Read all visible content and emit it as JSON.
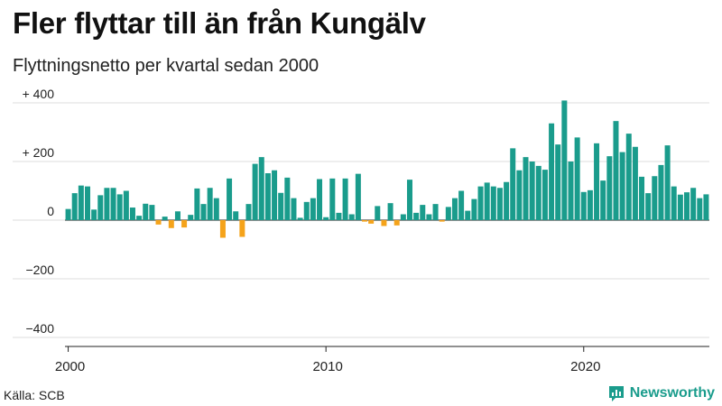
{
  "title": "Fler flyttar till än från Kungälv",
  "subtitle": "Flyttningsnetto per kvartal sedan 2000",
  "source": "Källa: SCB",
  "brand": "Newsworthy",
  "colors": {
    "positive": "#1a9c8c",
    "negative": "#f5a31a",
    "grid": "#dddddd",
    "brand": "#1a9c8c"
  },
  "chart_data": {
    "type": "bar",
    "title": "Fler flyttar till än från Kungälv",
    "subtitle": "Flyttningsnetto per kvartal sedan 2000",
    "x_start": "2000 Q1",
    "x_ticks": [
      "2000",
      "2010",
      "2020"
    ],
    "y_ticks": [
      {
        "value": 400,
        "label": "+ 400"
      },
      {
        "value": 200,
        "label": "+ 200"
      },
      {
        "value": 0,
        "label": "0"
      },
      {
        "value": -200,
        "label": "−200"
      },
      {
        "value": -400,
        "label": "−400"
      }
    ],
    "ylim": [
      -400,
      400
    ],
    "grid": true,
    "values": [
      38,
      92,
      118,
      115,
      36,
      85,
      110,
      110,
      88,
      100,
      43,
      15,
      56,
      52,
      -15,
      12,
      -27,
      30,
      -25,
      18,
      108,
      55,
      110,
      75,
      -60,
      142,
      30,
      -57,
      55,
      192,
      215,
      160,
      170,
      93,
      145,
      75,
      8,
      62,
      75,
      140,
      10,
      142,
      25,
      142,
      20,
      158,
      -5,
      -12,
      48,
      -20,
      58,
      -18,
      20,
      138,
      25,
      52,
      20,
      55,
      -5,
      45,
      75,
      100,
      32,
      72,
      115,
      128,
      115,
      110,
      130,
      245,
      170,
      215,
      200,
      185,
      172,
      330,
      258,
      408,
      200,
      282,
      96,
      102,
      262,
      135,
      218,
      338,
      232,
      295,
      250,
      148,
      92,
      150,
      188,
      255,
      115,
      87,
      95,
      110,
      75,
      88
    ]
  }
}
